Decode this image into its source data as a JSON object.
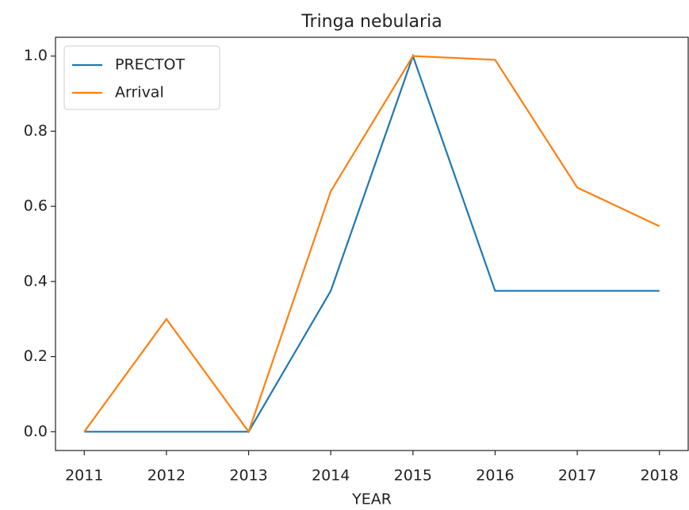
{
  "chart_data": {
    "type": "line",
    "title": "Tringa nebularia",
    "x_label": "YEAR",
    "x": [
      2011,
      2012,
      2013,
      2014,
      2015,
      2016,
      2017,
      2018
    ],
    "series": [
      {
        "name": "PRECTOT",
        "color": "#1f77b4",
        "values": [
          0,
          0,
          0,
          0.375,
          1,
          0.375,
          0.375,
          0.375
        ]
      },
      {
        "name": "Arrival",
        "color": "#ff7f0e",
        "values": [
          0,
          0.3,
          0,
          0.64,
          1,
          0.99,
          0.65,
          0.547
        ]
      }
    ],
    "xlim": [
      2010.65,
      2018.35
    ],
    "xticks": [
      2011,
      2012,
      2013,
      2014,
      2015,
      2016,
      2017,
      2018
    ],
    "ylim": [
      -0.05,
      1.05
    ],
    "yticks": [
      {
        "value": 0,
        "label": "0.0"
      },
      0.2,
      0.4,
      0.6,
      0.8,
      {
        "value": 1,
        "label": "1.0"
      }
    ],
    "legend": "upper left",
    "grid": false
  }
}
